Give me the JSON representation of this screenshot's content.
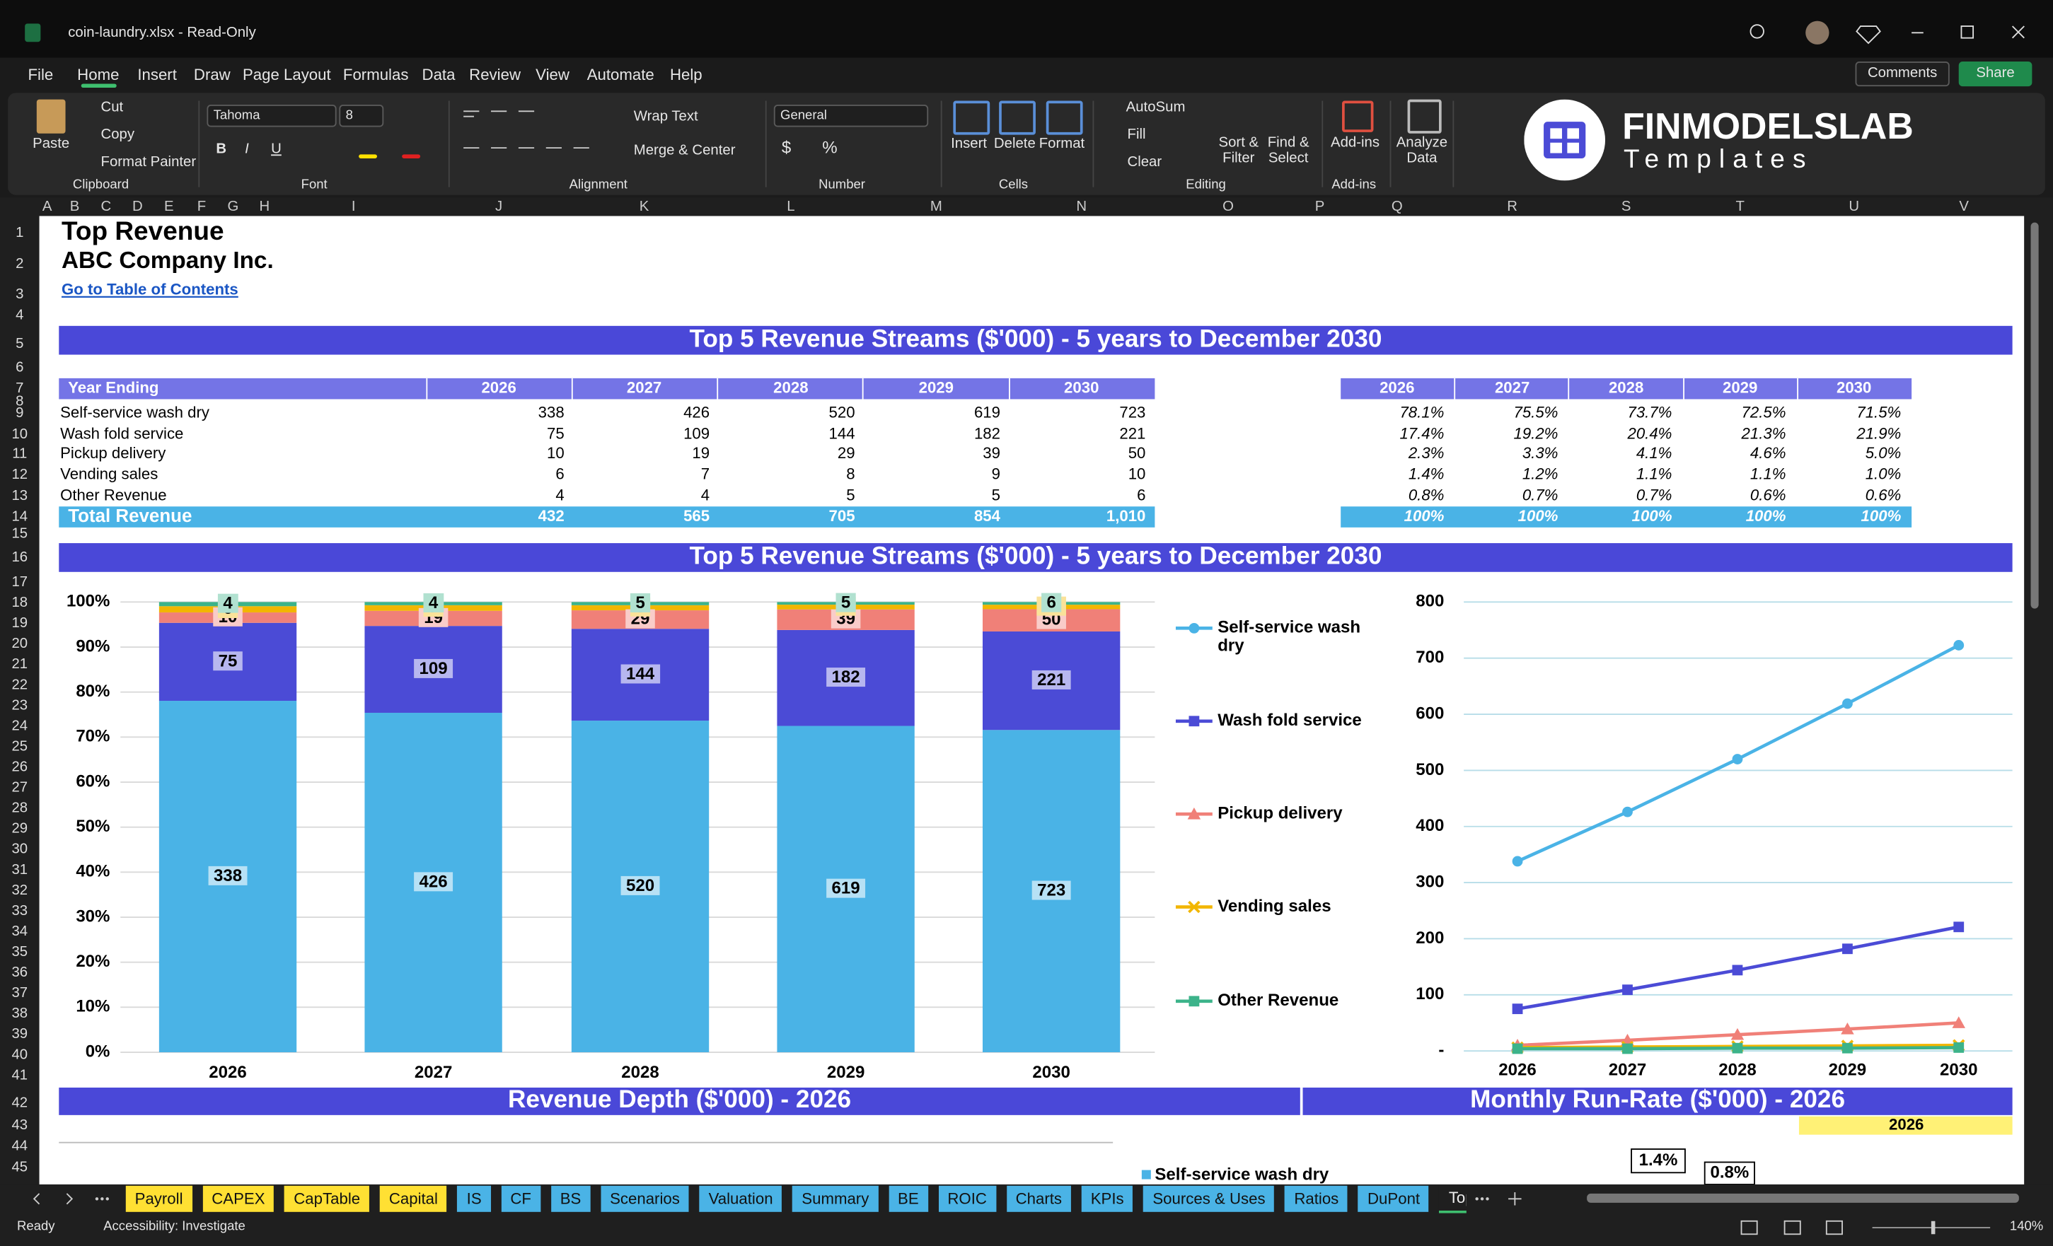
{
  "window": {
    "title": "coin-laundry.xlsx  -  Read-Only"
  },
  "menu": [
    "File",
    "Home",
    "Insert",
    "Draw",
    "Page Layout",
    "Formulas",
    "Data",
    "Review",
    "View",
    "Automate",
    "Help"
  ],
  "comments": "Comments",
  "share": "Share",
  "ribbon": {
    "clipboard": {
      "paste": "Paste",
      "cut": "Cut",
      "copy": "Copy",
      "format_painter": "Format Painter",
      "label": "Clipboard"
    },
    "font": {
      "name": "Tahoma",
      "size": "8",
      "bold": "B",
      "italic": "I",
      "underline": "U",
      "label": "Font"
    },
    "alignment": {
      "wrap": "Wrap Text",
      "merge": "Merge & Center",
      "label": "Alignment"
    },
    "number": {
      "format": "General",
      "currency": "$",
      "percent": "%",
      "label": "Number"
    },
    "cells": {
      "insert": "Insert",
      "delete": "Delete",
      "format": "Format",
      "label": "Cells"
    },
    "editing": {
      "autosum": "AutoSum",
      "fill": "Fill",
      "clear": "Clear",
      "sort": "Sort & Filter",
      "find": "Find & Select",
      "label": "Editing"
    },
    "addins": {
      "addins": "Add-ins",
      "label": "Add-ins"
    },
    "analyze": "Analyze Data"
  },
  "logo": {
    "brand": "FINMODELSLAB",
    "sub": "Templates"
  },
  "columns": [
    "A",
    "B",
    "C",
    "D",
    "E",
    "F",
    "G",
    "H",
    "I",
    "J",
    "K",
    "L",
    "M",
    "N",
    "O",
    "P",
    "Q",
    "R",
    "S",
    "T",
    "U",
    "V"
  ],
  "rows": [
    1,
    2,
    3,
    4,
    5,
    6,
    7,
    8,
    9,
    10,
    11,
    12,
    13,
    14,
    15,
    16,
    17,
    18,
    19,
    20,
    21,
    22,
    23,
    24,
    25,
    26,
    27,
    28,
    29,
    30,
    31,
    32,
    33,
    34,
    35,
    36,
    37,
    38,
    39,
    40,
    41,
    42,
    43,
    44,
    45
  ],
  "sheet": {
    "title": "Top Revenue",
    "company": "ABC Company Inc.",
    "link": "Go to Table of Contents",
    "banners": [
      "Top 5 Revenue Streams ($'000) - 5 years to December 2030",
      "Top 5 Revenue Streams ($'000) - 5 years to December 2030",
      "Revenue Depth ($'000) - 2026",
      "Monthly Run-Rate ($'000) - 2026"
    ],
    "table": {
      "header": [
        "Year Ending",
        "2026",
        "2027",
        "2028",
        "2029",
        "2030"
      ],
      "rows": [
        [
          "Self-service wash dry",
          "338",
          "426",
          "520",
          "619",
          "723"
        ],
        [
          "Wash fold service",
          "75",
          "109",
          "144",
          "182",
          "221"
        ],
        [
          "Pickup delivery",
          "10",
          "19",
          "29",
          "39",
          "50"
        ],
        [
          "Vending sales",
          "6",
          "7",
          "8",
          "9",
          "10"
        ],
        [
          "Other Revenue",
          "4",
          "4",
          "5",
          "5",
          "6"
        ]
      ],
      "total": [
        "Total Revenue",
        "432",
        "565",
        "705",
        "854",
        "1,010"
      ]
    },
    "share_table": {
      "header": [
        "2026",
        "2027",
        "2028",
        "2029",
        "2030"
      ],
      "rows": [
        [
          "78.1%",
          "75.5%",
          "73.7%",
          "72.5%",
          "71.5%"
        ],
        [
          "17.4%",
          "19.2%",
          "20.4%",
          "21.3%",
          "21.9%"
        ],
        [
          "2.3%",
          "3.3%",
          "4.1%",
          "4.6%",
          "5.0%"
        ],
        [
          "1.4%",
          "1.2%",
          "1.1%",
          "1.1%",
          "1.0%"
        ],
        [
          "0.8%",
          "0.7%",
          "0.7%",
          "0.6%",
          "0.6%"
        ]
      ],
      "total": [
        "100%",
        "100%",
        "100%",
        "100%",
        "100%"
      ]
    },
    "run_rate_year": "2026",
    "depth_legend": "Self-service wash dry",
    "callouts": [
      "1.4%",
      "0.8%"
    ]
  },
  "chart_data": [
    {
      "type": "bar",
      "stacking": "percent",
      "categories": [
        "2026",
        "2027",
        "2028",
        "2029",
        "2030"
      ],
      "series": [
        {
          "color": "#4ab3e6",
          "values": [
            338,
            426,
            520,
            619,
            723
          ]
        },
        {
          "color": "#4b4bd6",
          "values": [
            75,
            109,
            144,
            182,
            221
          ]
        },
        {
          "color": "#f08078",
          "values": [
            10,
            19,
            29,
            39,
            50
          ]
        },
        {
          "color": "#f2b600",
          "values": [
            6,
            7,
            8,
            9,
            10
          ]
        },
        {
          "color": "#3cb38a",
          "values": [
            4,
            4,
            5,
            5,
            6
          ]
        }
      ],
      "ylim": [
        0,
        100
      ],
      "yticks": [
        {
          "value": 0,
          "label": "0%"
        },
        {
          "value": 10,
          "label": "10%"
        },
        {
          "value": 20,
          "label": "20%"
        },
        {
          "value": 30,
          "label": "30%"
        },
        {
          "value": 40,
          "label": "40%"
        },
        {
          "value": 50,
          "label": "50%"
        },
        {
          "value": 60,
          "label": "60%"
        },
        {
          "value": 70,
          "label": "70%"
        },
        {
          "value": 80,
          "label": "80%"
        },
        {
          "value": 90,
          "label": "90%"
        },
        {
          "value": 100,
          "label": "100%"
        }
      ],
      "grid": true
    },
    {
      "type": "line",
      "categories": [
        "2026",
        "2027",
        "2028",
        "2029",
        "2030"
      ],
      "series": [
        {
          "name": "Self-service wash dry",
          "color": "#4ab3e6",
          "marker": "circle",
          "values": [
            338,
            426,
            520,
            619,
            723
          ]
        },
        {
          "name": "Wash fold service",
          "color": "#4b4bd6",
          "marker": "square",
          "values": [
            75,
            109,
            144,
            182,
            221
          ]
        },
        {
          "name": "Pickup delivery",
          "color": "#f08078",
          "marker": "triangle",
          "values": [
            10,
            19,
            29,
            39,
            50
          ]
        },
        {
          "name": "Vending sales",
          "color": "#f2b600",
          "marker": "x",
          "values": [
            6,
            7,
            8,
            9,
            10
          ]
        },
        {
          "name": "Other Revenue",
          "color": "#3cb38a",
          "marker": "square",
          "values": [
            4,
            4,
            5,
            5,
            6
          ]
        }
      ],
      "ylim": [
        0,
        800
      ],
      "yticks": [
        {
          "value": 0,
          "label": "-"
        },
        100,
        200,
        300,
        400,
        500,
        600,
        700,
        800
      ],
      "grid": true,
      "legend": "left"
    }
  ],
  "sheet_tabs": [
    {
      "name": "Payroll",
      "color": "#ffe033"
    },
    {
      "name": "CAPEX",
      "color": "#ffe033"
    },
    {
      "name": "CapTable",
      "color": "#ffe033"
    },
    {
      "name": "Capital",
      "color": "#ffe033"
    },
    {
      "name": "IS",
      "color": "#4ab3e6"
    },
    {
      "name": "CF",
      "color": "#4ab3e6"
    },
    {
      "name": "BS",
      "color": "#4ab3e6"
    },
    {
      "name": "Scenarios",
      "color": "#4ab3e6"
    },
    {
      "name": "Valuation",
      "color": "#4ab3e6"
    },
    {
      "name": "Summary",
      "color": "#4ab3e6"
    },
    {
      "name": "BE",
      "color": "#4ab3e6"
    },
    {
      "name": "ROIC",
      "color": "#4ab3e6"
    },
    {
      "name": "Charts",
      "color": "#4ab3e6"
    },
    {
      "name": "KPIs",
      "color": "#4ab3e6"
    },
    {
      "name": "Sources & Uses",
      "color": "#4ab3e6"
    },
    {
      "name": "Ratios",
      "color": "#4ab3e6"
    },
    {
      "name": "DuPont",
      "color": "#4ab3e6"
    },
    {
      "name": "Top_Revenue",
      "active": true
    },
    {
      "name": "To",
      "color": "#4ab3e6"
    }
  ],
  "status": {
    "ready": "Ready",
    "accessibility": "Accessibility: Investigate",
    "zoom": "140%"
  }
}
